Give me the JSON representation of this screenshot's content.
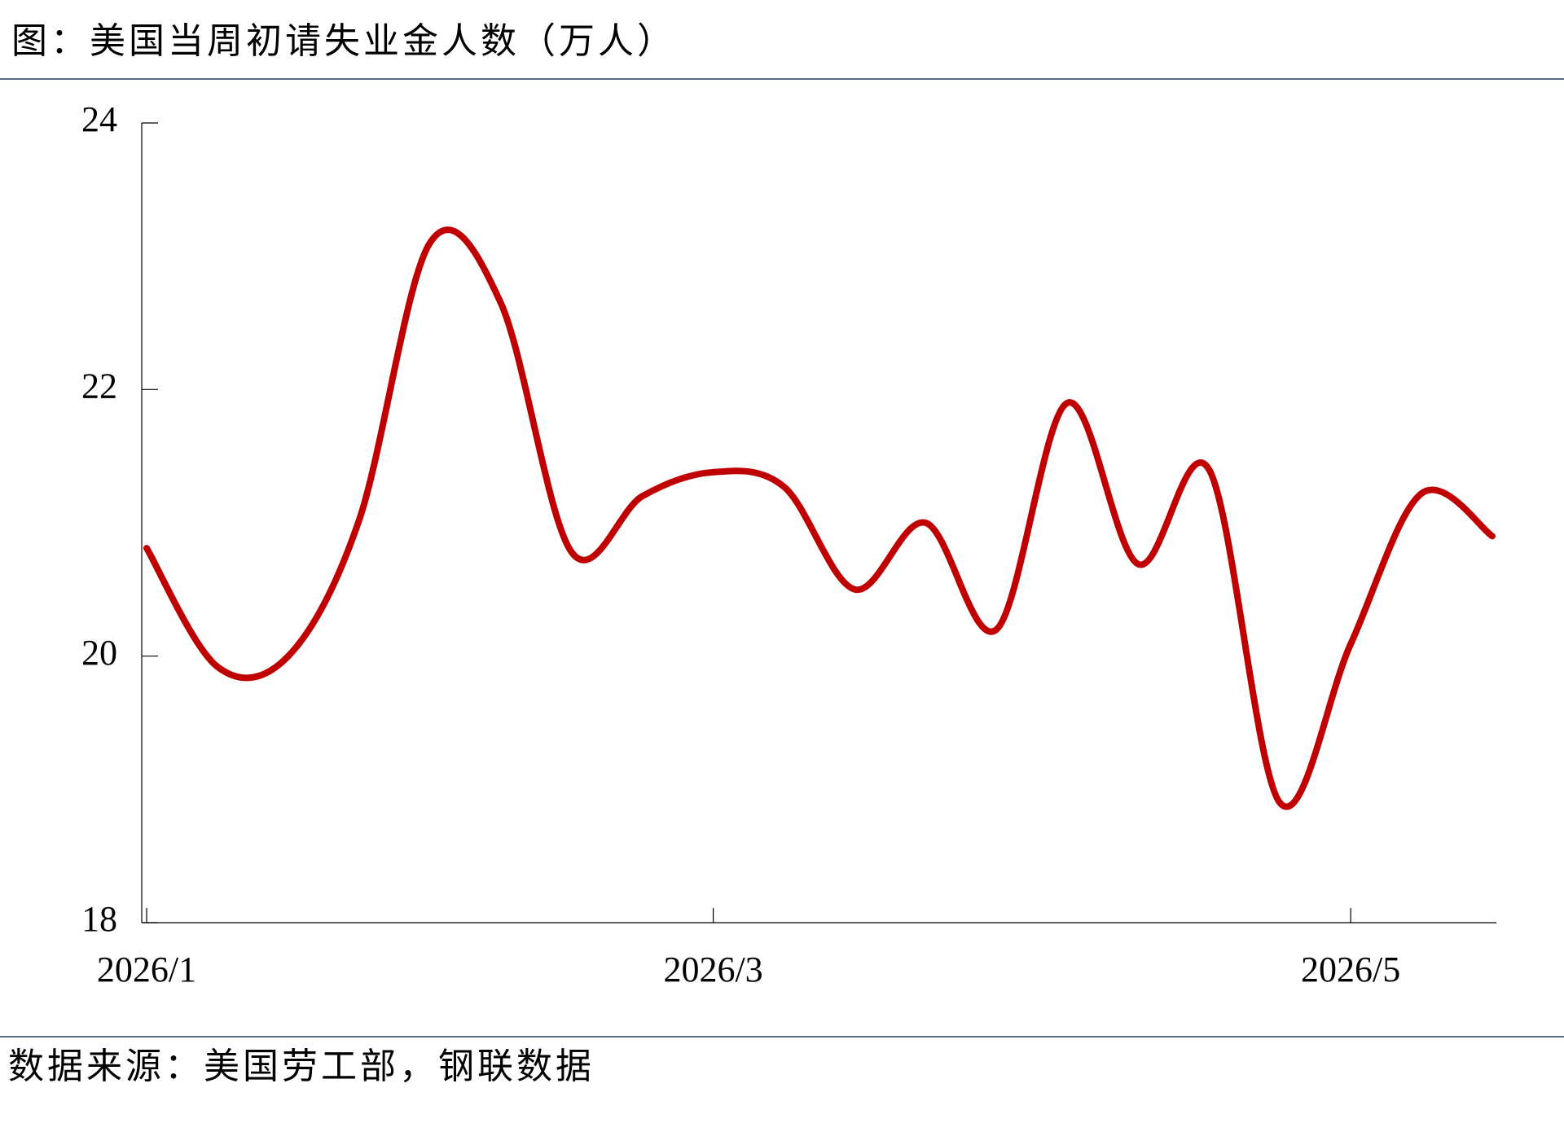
{
  "chart_data": {
    "type": "line",
    "title": "图：美国当周初请失业金人数（万人）",
    "source": "数据来源：美国劳工部，钢联数据",
    "categories": [
      "2026/1",
      null,
      null,
      null,
      null,
      null,
      null,
      null,
      "2026/3",
      null,
      null,
      null,
      null,
      null,
      null,
      null,
      null,
      "2026/5",
      null,
      null
    ],
    "series": [
      {
        "name": "当周初请失业金人数",
        "color": "#c00000",
        "values": [
          20.81,
          19.92,
          20.0,
          21.02,
          23.1,
          22.65,
          20.78,
          21.2,
          21.38,
          21.27,
          20.5,
          21.0,
          20.2,
          21.9,
          20.69,
          21.4,
          18.9,
          20.09,
          21.22,
          20.9
        ]
      }
    ],
    "ylim": [
      18,
      24
    ],
    "yticks": [
      18,
      20,
      22,
      24
    ],
    "grid": false
  }
}
